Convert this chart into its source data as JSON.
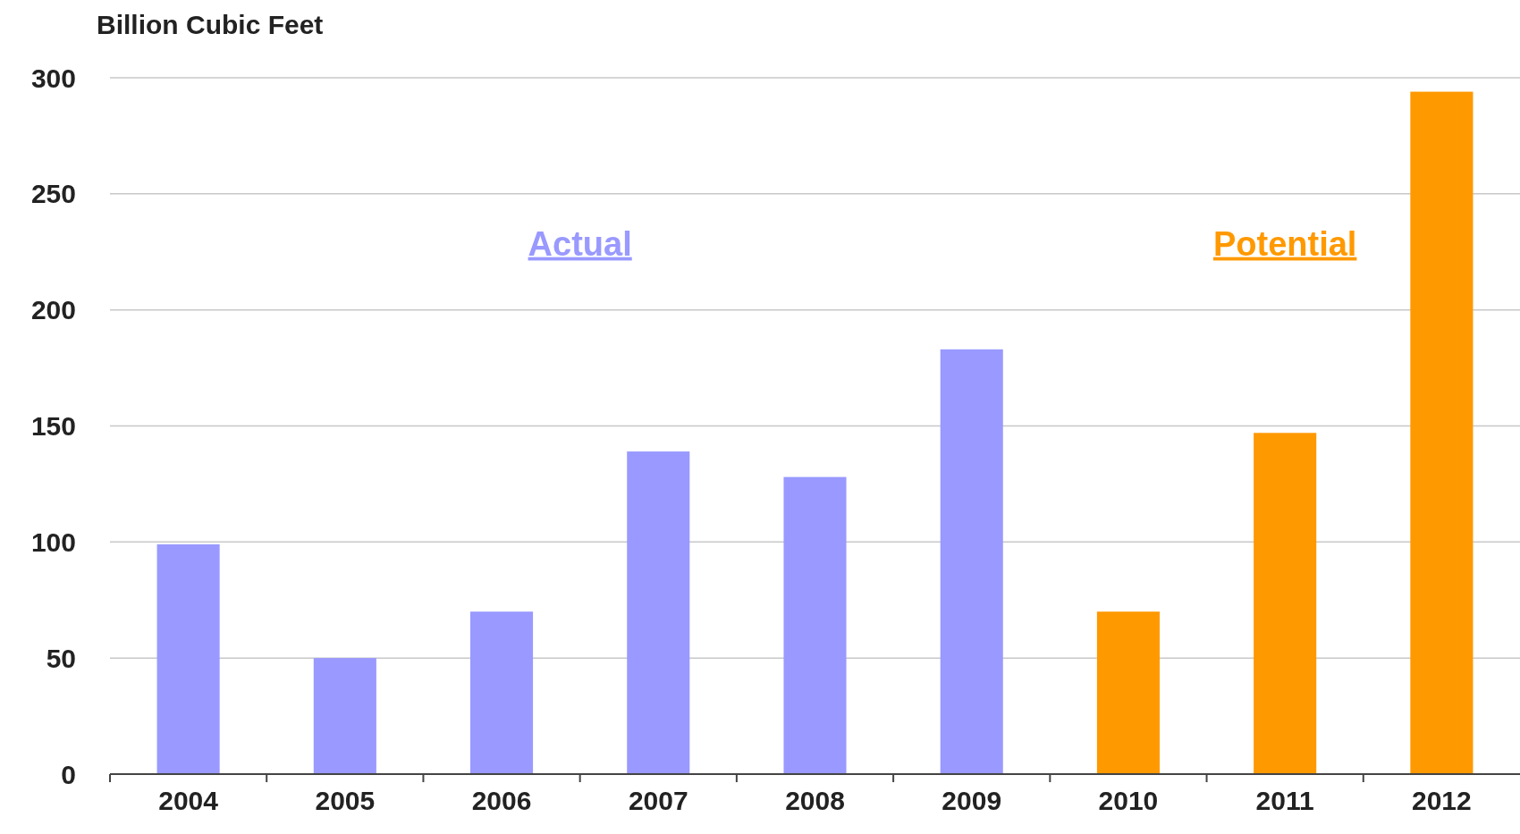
{
  "chart_data": {
    "type": "bar",
    "ylabel": "Billion Cubic Feet",
    "categories": [
      "2004",
      "2005",
      "2006",
      "2007",
      "2008",
      "2009",
      "2010",
      "2011",
      "2012"
    ],
    "series": [
      {
        "name": "Actual",
        "color": "#9999ff",
        "values": [
          99,
          50,
          70,
          139,
          128,
          183,
          null,
          null,
          null
        ]
      },
      {
        "name": "Potential",
        "color": "#ff9900",
        "values": [
          null,
          null,
          null,
          null,
          null,
          null,
          70,
          147,
          294
        ]
      }
    ],
    "ylim": [
      0,
      300
    ],
    "yticks": [
      0,
      50,
      100,
      150,
      200,
      250,
      300
    ],
    "grid": "y"
  }
}
